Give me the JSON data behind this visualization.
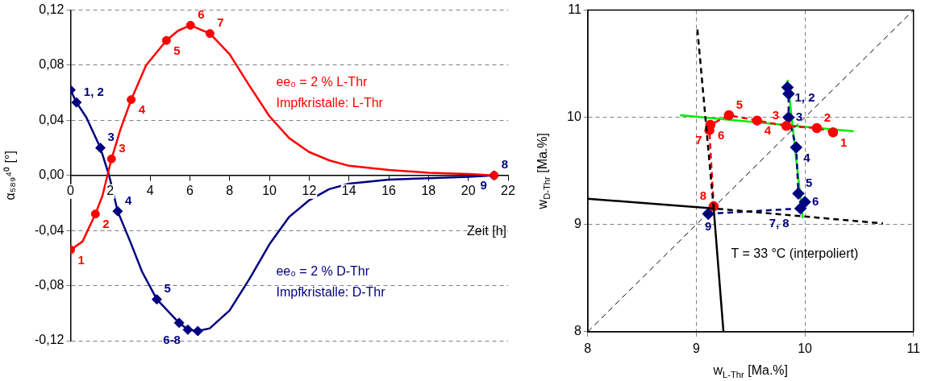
{
  "chart_data": [
    {
      "type": "line",
      "xlabel": "Zeit [h]",
      "ylabel": "α₅₈₉⁴⁰ [°]",
      "xlim": [
        0,
        22
      ],
      "xticks": [
        0,
        2,
        4,
        6,
        8,
        10,
        12,
        14,
        16,
        18,
        20,
        22
      ],
      "ylim": [
        -0.12,
        0.12
      ],
      "yticks": [
        {
          "value": -0.12,
          "label": "-0,12"
        },
        {
          "value": -0.08,
          "label": "-0,08"
        },
        {
          "value": -0.04,
          "label": "-0,04"
        },
        {
          "value": 0,
          "label": "0,00"
        },
        {
          "value": 0.04,
          "label": "0,04"
        },
        {
          "value": 0.08,
          "label": "0,08"
        },
        {
          "value": 0.12,
          "label": "0,12"
        }
      ],
      "grid": "y",
      "line_style": "solid",
      "series": [
        {
          "type": "line",
          "name": "ee₀ = 2 % L-Thr\nImpfkristalle: L-Thr",
          "color": "#ff0000",
          "marker": "none",
          "x": [
            0,
            0.6,
            1.25,
            1.6,
            2.06,
            2.5,
            3.05,
            3.8,
            4.82,
            5.4,
            6.03,
            7.01,
            8,
            9,
            10,
            11,
            12,
            13,
            14,
            16,
            18,
            20,
            21.3
          ],
          "values": [
            -0.054,
            -0.048,
            -0.028,
            -0.015,
            0.012,
            0.033,
            0.055,
            0.08,
            0.098,
            0.105,
            0.109,
            0.103,
            0.088,
            0.065,
            0.043,
            0.027,
            0.017,
            0.011,
            0.007,
            0.004,
            0.002,
            0.001,
            0
          ]
        },
        {
          "type": "line",
          "name": "ee₀ = 2 % D-Thr\nImpfkristalle: D-Thr",
          "color": "#000080",
          "marker": "none",
          "x": [
            0,
            0.3,
            0.8,
            1.5,
            1.94,
            2.37,
            3,
            3.6,
            4.34,
            5.46,
            5.9,
            6.4,
            7,
            8,
            9,
            10,
            11,
            12,
            13,
            14,
            16,
            18,
            20,
            21.3
          ],
          "values": [
            0.062,
            0.053,
            0.042,
            0.02,
            0,
            -0.026,
            -0.048,
            -0.07,
            -0.09,
            -0.107,
            -0.112,
            -0.113,
            -0.111,
            -0.098,
            -0.075,
            -0.05,
            -0.03,
            -0.018,
            -0.01,
            -0.006,
            -0.003,
            -0.002,
            -0.001,
            0
          ]
        },
        {
          "type": "scatter",
          "color": "#ff0000",
          "marker": "circle",
          "x": [
            0,
            1.25,
            2.06,
            3.05,
            4.82,
            6.03,
            7.01,
            21.3
          ],
          "values": [
            -0.054,
            -0.028,
            0.012,
            0.055,
            0.098,
            0.109,
            0.103,
            0
          ]
        },
        {
          "type": "scatter",
          "color": "#000080",
          "marker": "diamond",
          "x": [
            0,
            0.3,
            1.5,
            2.37,
            4.34,
            5.46,
            5.9,
            6.4,
            21.3
          ],
          "values": [
            0.062,
            0.053,
            0.02,
            -0.026,
            -0.09,
            -0.107,
            -0.112,
            -0.113,
            0
          ]
        }
      ],
      "annotations": [
        {
          "text": "1",
          "x": 0,
          "y": -0.054
        },
        {
          "text": "2",
          "x": 1.25,
          "y": -0.028
        },
        {
          "text": "3",
          "x": 2.06,
          "y": 0.012
        },
        {
          "text": "4",
          "x": 3.05,
          "y": 0.055
        },
        {
          "text": "5",
          "x": 4.82,
          "y": 0.098
        },
        {
          "text": "6",
          "x": 6.03,
          "y": 0.109
        },
        {
          "text": "7",
          "x": 7.01,
          "y": 0.103
        },
        {
          "text": "8",
          "x": 21.3,
          "y": 0
        },
        {
          "text": "1, 2",
          "x": 0.3,
          "y": 0.053
        },
        {
          "text": "3",
          "x": 1.5,
          "y": 0.02
        },
        {
          "text": "4",
          "x": 2.37,
          "y": -0.026
        },
        {
          "text": "5",
          "x": 4.34,
          "y": -0.09
        },
        {
          "text": "6-8",
          "x": 5.9,
          "y": -0.112
        },
        {
          "text": "9",
          "x": 21.3,
          "y": 0
        }
      ]
    },
    {
      "type": "line",
      "xlabel": "w$_{L-Thr}$ [Ma.%]",
      "ylabel": "w$_{D-Thr}$ [Ma.%]",
      "xlim": [
        8,
        11
      ],
      "xticks": [
        8,
        9,
        10,
        11
      ],
      "ylim": [
        8,
        11
      ],
      "yticks": [
        8,
        9,
        10,
        11
      ],
      "grid": true,
      "series": [
        {
          "type": "line",
          "color": "#000000",
          "marker": "none",
          "line_style": "dashed",
          "x": [
            8,
            11
          ],
          "values": [
            8,
            11
          ]
        },
        {
          "type": "line",
          "color": "#000000",
          "marker": "none",
          "line_style": "solid",
          "x": [
            8,
            9.16,
            9.25
          ],
          "values": [
            9.24,
            9.15,
            8
          ]
        },
        {
          "type": "line",
          "color": "#000000",
          "marker": "none",
          "line_style": "dashed",
          "x": [
            9.01,
            9.16,
            10.72
          ],
          "values": [
            10.82,
            9.15,
            9.01
          ]
        },
        {
          "type": "line",
          "color": "#ff0000",
          "marker": "circle",
          "line_style": "dashed",
          "x": [
            10.26,
            10.11,
            9.83,
            9.56,
            9.3,
            9.13,
            9.12,
            9.16
          ],
          "values": [
            9.86,
            9.9,
            9.92,
            9.97,
            10.02,
            9.93,
            9.88,
            9.17
          ]
        },
        {
          "type": "line",
          "color": "#000080",
          "marker": "diamond",
          "line_style": "dashed",
          "x": [
            9.84,
            9.85,
            9.85,
            9.92,
            9.94,
            10,
            9.96,
            9.11
          ],
          "values": [
            10.28,
            10.22,
            10,
            9.72,
            9.29,
            9.21,
            9.15,
            9.1
          ]
        },
        {
          "type": "line",
          "color": "#00ee00",
          "marker": "none",
          "line_style": "solid",
          "x": [
            8.85,
            10.45
          ],
          "values": [
            10.02,
            9.87
          ]
        },
        {
          "type": "line",
          "color": "#00ee00",
          "marker": "none",
          "line_style": "solid",
          "x": [
            9.84,
            9.98
          ],
          "values": [
            10.35,
            9.06
          ]
        }
      ],
      "annotations": [
        {
          "text": "1",
          "x": 10.26,
          "y": 9.86
        },
        {
          "text": "2",
          "x": 10.11,
          "y": 9.9
        },
        {
          "text": "3",
          "x": 9.83,
          "y": 9.92
        },
        {
          "text": "4",
          "x": 9.56,
          "y": 9.97
        },
        {
          "text": "5",
          "x": 9.3,
          "y": 10.02
        },
        {
          "text": "6",
          "x": 9.13,
          "y": 9.93
        },
        {
          "text": "7",
          "x": 9.12,
          "y": 9.88
        },
        {
          "text": "8",
          "x": 9.16,
          "y": 9.17
        },
        {
          "text": "1, 2",
          "x": 9.84,
          "y": 10.28
        },
        {
          "text": "3",
          "x": 9.85,
          "y": 10
        },
        {
          "text": "4",
          "x": 9.92,
          "y": 9.72
        },
        {
          "text": "5",
          "x": 9.94,
          "y": 9.29
        },
        {
          "text": "6",
          "x": 10,
          "y": 9.21
        },
        {
          "text": "7, 8",
          "x": 9.96,
          "y": 9.15
        },
        {
          "text": "9",
          "x": 9.11,
          "y": 9.1
        },
        "T = 33 °C (interpoliert)"
      ]
    }
  ]
}
